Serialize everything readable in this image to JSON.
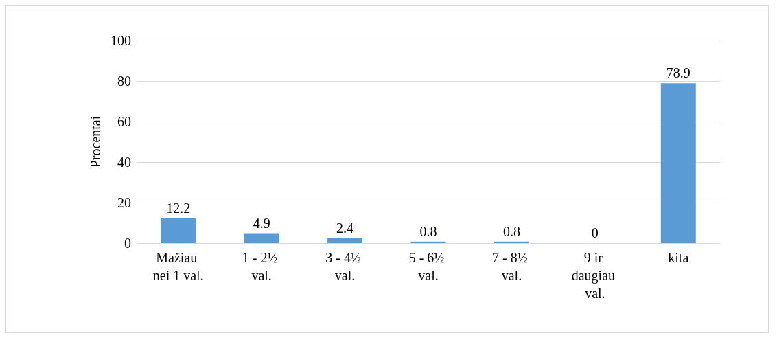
{
  "chart_data": {
    "type": "bar",
    "ylabel": "Procentai",
    "categories": [
      "Mažiau nei 1 val.",
      "1 - 2½ val.",
      "3 - 4½ val.",
      "5 - 6½ val.",
      "7 - 8½ val.",
      "9 ir daugiau val.",
      "kita"
    ],
    "values": [
      12.2,
      4.9,
      2.4,
      0.8,
      0.8,
      0,
      78.9
    ],
    "color": "#5b9bd5",
    "ylim": [
      0,
      100
    ],
    "yticks": [
      0,
      20,
      40,
      60,
      80,
      100
    ],
    "grid": "y",
    "data_labels": true
  }
}
